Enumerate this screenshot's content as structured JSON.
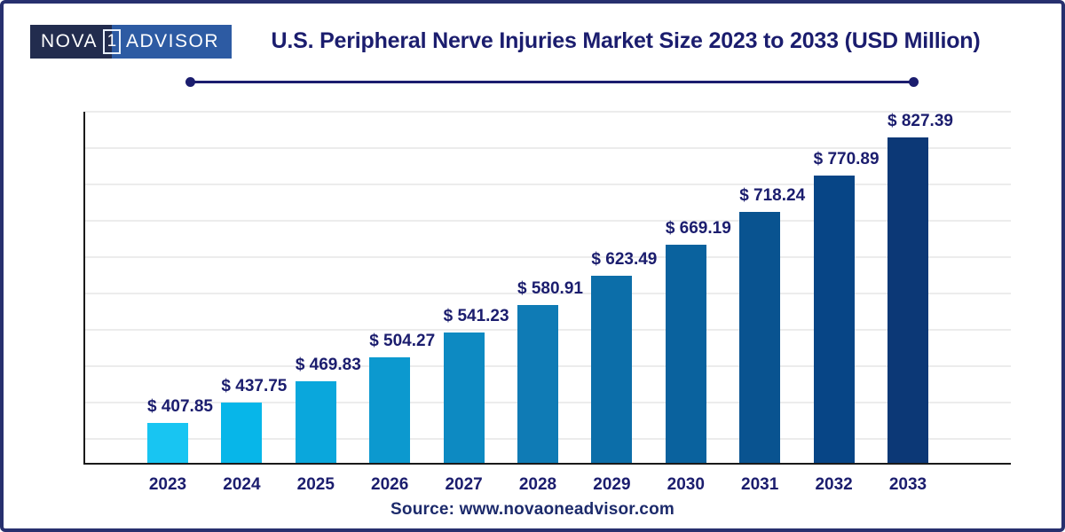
{
  "logo": {
    "part1": "NOVA",
    "number": "1",
    "part2": "ADVISOR"
  },
  "header": {
    "title": "U.S. Peripheral Nerve Injuries Market Size 2023 to 2033 (USD Million)"
  },
  "footer": {
    "source": "Source: www.novaoneadvisor.com"
  },
  "chart_data": {
    "type": "bar",
    "title": "U.S. Peripheral Nerve Injuries Market Size 2023 to 2033 (USD Million)",
    "categories": [
      "2023",
      "2024",
      "2025",
      "2026",
      "2027",
      "2028",
      "2029",
      "2030",
      "2031",
      "2032",
      "2033"
    ],
    "values": [
      407.85,
      437.75,
      469.83,
      504.27,
      541.23,
      580.91,
      623.49,
      669.19,
      718.24,
      770.89,
      827.39
    ],
    "value_prefix": "$ ",
    "bar_colors": [
      "#18c5f2",
      "#07b6e9",
      "#0aa7dc",
      "#0c99cf",
      "#0d8ac2",
      "#0f7bb5",
      "#0c6ea9",
      "#0a629e",
      "#095390",
      "#074586",
      "#0c3876"
    ],
    "xlabel": "",
    "ylabel": "",
    "ylim": [
      350,
      867
    ],
    "grid": true,
    "legend_position": "none",
    "ink_color": "#1b1d6e",
    "axis_color": "#1a1a1a",
    "grid_color": "#ececec"
  }
}
